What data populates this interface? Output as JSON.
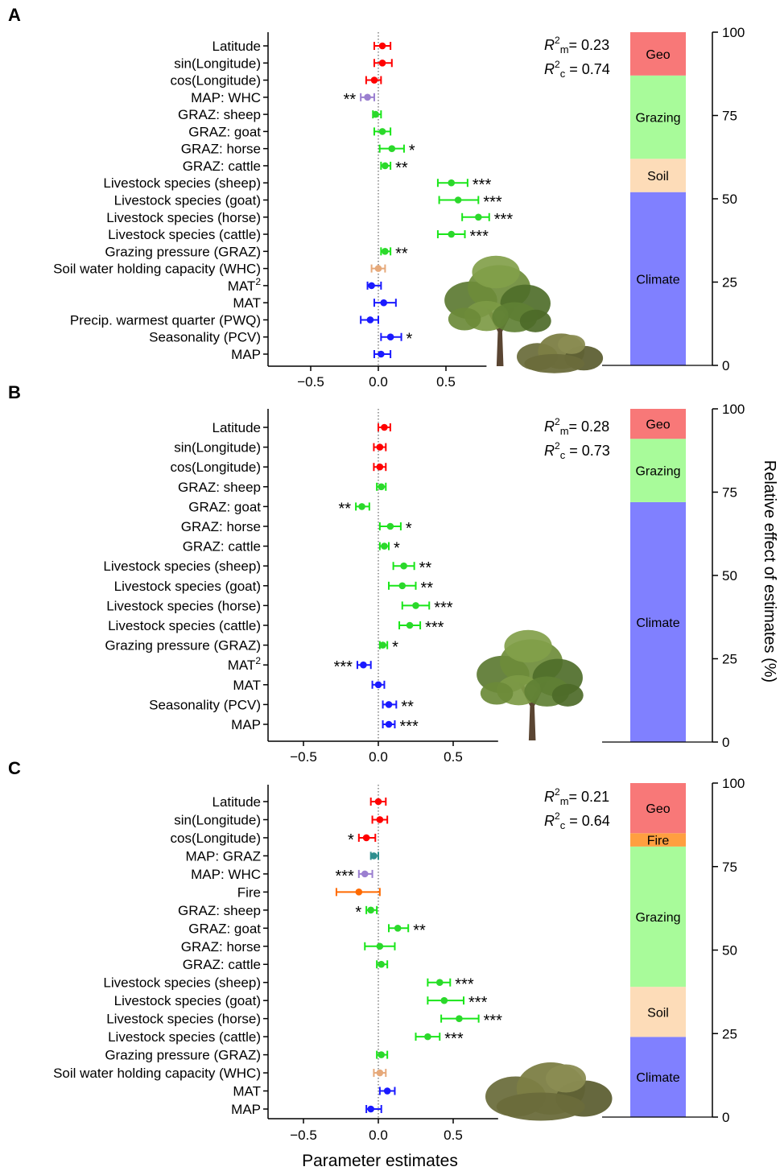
{
  "xlabel": "Parameter estimates",
  "right_axis_label": "Relative effect of estimates (%)",
  "colors": {
    "geo": "#ff0000",
    "grazing": "#19e619",
    "grazing_point": "#2bd82b",
    "soil": "#e6a97a",
    "climate": "#1a1aff",
    "fire": "#ff6a00",
    "bar_geo": "#f87878",
    "bar_grazing": "#a8fb9a",
    "bar_soil": "#fddcb8",
    "bar_climate": "#8080ff",
    "bar_fire": "#ff9f40"
  },
  "chart_data": [
    {
      "panel_label": "A",
      "type": "forest",
      "xlim": [
        -0.8,
        0.8
      ],
      "xticks": [
        -0.5,
        0.0,
        0.5
      ],
      "xtick_labels": [
        "−0.5",
        "0.0",
        "0.5"
      ],
      "r2m_text": "= 0.23",
      "r2c_text": "= 0.74",
      "picture": "tree-and-shrub",
      "rows": [
        {
          "label": "Latitude",
          "group": "geo",
          "est": 0.03,
          "lo": -0.03,
          "hi": 0.09,
          "sig": ""
        },
        {
          "label": "sin(Longitude)",
          "group": "geo",
          "est": 0.03,
          "lo": -0.03,
          "hi": 0.1,
          "sig": ""
        },
        {
          "label": "cos(Longitude)",
          "group": "geo",
          "est": -0.03,
          "lo": -0.09,
          "hi": 0.02,
          "sig": ""
        },
        {
          "label": "MAP: WHC",
          "group": "mixed",
          "est": -0.08,
          "lo": -0.13,
          "hi": -0.03,
          "sig": "**"
        },
        {
          "label": "GRAZ: sheep",
          "group": "grazing",
          "est": -0.02,
          "lo": -0.04,
          "hi": 0.02,
          "sig": ""
        },
        {
          "label": "GRAZ: goat",
          "group": "grazing",
          "est": 0.03,
          "lo": -0.03,
          "hi": 0.09,
          "sig": ""
        },
        {
          "label": "GRAZ: horse",
          "group": "grazing",
          "est": 0.1,
          "lo": 0.01,
          "hi": 0.19,
          "sig": "*"
        },
        {
          "label": "GRAZ: cattle",
          "group": "grazing",
          "est": 0.05,
          "lo": 0.02,
          "hi": 0.09,
          "sig": "**"
        },
        {
          "label": "Livestock species (sheep)",
          "group": "grazing",
          "est": 0.54,
          "lo": 0.44,
          "hi": 0.66,
          "sig": "***"
        },
        {
          "label": "Livestock species (goat)",
          "group": "grazing",
          "est": 0.59,
          "lo": 0.45,
          "hi": 0.74,
          "sig": "***"
        },
        {
          "label": "Livestock species (horse)",
          "group": "grazing",
          "est": 0.74,
          "lo": 0.62,
          "hi": 0.82,
          "sig": "***"
        },
        {
          "label": "Livestock species (cattle)",
          "group": "grazing",
          "est": 0.54,
          "lo": 0.44,
          "hi": 0.64,
          "sig": "***"
        },
        {
          "label": "Grazing pressure (GRAZ)",
          "group": "grazing",
          "est": 0.05,
          "lo": 0.02,
          "hi": 0.09,
          "sig": "**"
        },
        {
          "label": "Soil water holding capacity (WHC)",
          "group": "soil",
          "est": 0.0,
          "lo": -0.05,
          "hi": 0.05,
          "sig": ""
        },
        {
          "label": "MAT",
          "sup": "2",
          "group": "climate",
          "est": -0.05,
          "lo": -0.08,
          "hi": 0.02,
          "sig": ""
        },
        {
          "label": "MAT",
          "group": "climate",
          "est": 0.04,
          "lo": -0.03,
          "hi": 0.13,
          "sig": ""
        },
        {
          "label": "Precip. warmest quarter (PWQ)",
          "group": "climate",
          "est": -0.06,
          "lo": -0.13,
          "hi": 0.0,
          "sig": ""
        },
        {
          "label": "Seasonality (PCV)",
          "group": "climate",
          "est": 0.09,
          "lo": 0.02,
          "hi": 0.17,
          "sig": "*"
        },
        {
          "label": "MAP",
          "group": "climate",
          "est": 0.02,
          "lo": -0.03,
          "hi": 0.09,
          "sig": ""
        }
      ],
      "bar": [
        {
          "name": "Climate",
          "key": "climate",
          "value": 52
        },
        {
          "name": "Soil",
          "key": "soil",
          "value": 10
        },
        {
          "name": "Grazing",
          "key": "grazing",
          "value": 25
        },
        {
          "name": "Geo",
          "key": "geo",
          "value": 13
        }
      ],
      "bar_ylim": [
        0,
        100
      ],
      "bar_yticks": [
        0,
        25,
        50,
        75,
        100
      ]
    },
    {
      "panel_label": "B",
      "type": "forest",
      "xlim": [
        -0.8,
        0.8
      ],
      "xticks": [
        -0.5,
        0.0,
        0.5
      ],
      "xtick_labels": [
        "−0.5",
        "0.0",
        "0.5"
      ],
      "r2m_text": "= 0.28",
      "r2c_text": "= 0.73",
      "picture": "tree",
      "rows": [
        {
          "label": "Latitude",
          "group": "geo",
          "est": 0.04,
          "lo": 0.0,
          "hi": 0.08,
          "sig": ""
        },
        {
          "label": "sin(Longitude)",
          "group": "geo",
          "est": 0.01,
          "lo": -0.03,
          "hi": 0.05,
          "sig": ""
        },
        {
          "label": "cos(Longitude)",
          "group": "geo",
          "est": 0.01,
          "lo": -0.03,
          "hi": 0.05,
          "sig": ""
        },
        {
          "label": "GRAZ: sheep",
          "group": "grazing",
          "est": 0.02,
          "lo": -0.01,
          "hi": 0.05,
          "sig": ""
        },
        {
          "label": "GRAZ: goat",
          "group": "grazing",
          "est": -0.11,
          "lo": -0.15,
          "hi": -0.06,
          "sig": "**"
        },
        {
          "label": "GRAZ: horse",
          "group": "grazing",
          "est": 0.08,
          "lo": 0.01,
          "hi": 0.15,
          "sig": "*"
        },
        {
          "label": "GRAZ: cattle",
          "group": "grazing",
          "est": 0.04,
          "lo": 0.01,
          "hi": 0.07,
          "sig": "*"
        },
        {
          "label": "Livestock species (sheep)",
          "group": "grazing",
          "est": 0.17,
          "lo": 0.1,
          "hi": 0.24,
          "sig": "**"
        },
        {
          "label": "Livestock species (goat)",
          "group": "grazing",
          "est": 0.16,
          "lo": 0.07,
          "hi": 0.25,
          "sig": "**"
        },
        {
          "label": "Livestock species (horse)",
          "group": "grazing",
          "est": 0.25,
          "lo": 0.16,
          "hi": 0.34,
          "sig": "***"
        },
        {
          "label": "Livestock species (cattle)",
          "group": "grazing",
          "est": 0.21,
          "lo": 0.14,
          "hi": 0.28,
          "sig": "***"
        },
        {
          "label": "Grazing pressure (GRAZ)",
          "group": "grazing",
          "est": 0.03,
          "lo": 0.01,
          "hi": 0.06,
          "sig": "*"
        },
        {
          "label": "MAT",
          "sup": "2",
          "group": "climate",
          "est": -0.1,
          "lo": -0.14,
          "hi": -0.05,
          "sig": "***"
        },
        {
          "label": "MAT",
          "group": "climate",
          "est": 0.0,
          "lo": -0.04,
          "hi": 0.04,
          "sig": ""
        },
        {
          "label": "Seasonality (PCV)",
          "group": "climate",
          "est": 0.07,
          "lo": 0.03,
          "hi": 0.12,
          "sig": "**"
        },
        {
          "label": "MAP",
          "group": "climate",
          "est": 0.07,
          "lo": 0.03,
          "hi": 0.11,
          "sig": "***"
        }
      ],
      "bar": [
        {
          "name": "Climate",
          "key": "climate",
          "value": 72
        },
        {
          "name": "Grazing",
          "key": "grazing",
          "value": 19
        },
        {
          "name": "Geo",
          "key": "geo",
          "value": 9
        }
      ],
      "bar_ylim": [
        0,
        100
      ],
      "bar_yticks": [
        0,
        25,
        50,
        75,
        100
      ]
    },
    {
      "panel_label": "C",
      "type": "forest",
      "xlim": [
        -0.8,
        0.8
      ],
      "xticks": [
        -0.5,
        0.0,
        0.5
      ],
      "xtick_labels": [
        "−0.5",
        "0.0",
        "0.5"
      ],
      "r2m_text": "= 0.21",
      "r2c_text": "= 0.64",
      "picture": "shrub",
      "rows": [
        {
          "label": "Latitude",
          "group": "geo",
          "est": 0.0,
          "lo": -0.05,
          "hi": 0.05,
          "sig": ""
        },
        {
          "label": "sin(Longitude)",
          "group": "geo",
          "est": 0.01,
          "lo": -0.04,
          "hi": 0.06,
          "sig": ""
        },
        {
          "label": "cos(Longitude)",
          "group": "geo",
          "est": -0.08,
          "lo": -0.13,
          "hi": -0.02,
          "sig": "*"
        },
        {
          "label": "MAP: GRAZ",
          "group": "mixed2",
          "est": -0.03,
          "lo": -0.05,
          "hi": 0.0,
          "sig": ""
        },
        {
          "label": "MAP: WHC",
          "group": "mixed",
          "est": -0.09,
          "lo": -0.13,
          "hi": -0.04,
          "sig": "***"
        },
        {
          "label": "Fire",
          "group": "fire",
          "est": -0.13,
          "lo": -0.28,
          "hi": 0.01,
          "sig": ""
        },
        {
          "label": "GRAZ: sheep",
          "group": "grazing",
          "est": -0.05,
          "lo": -0.08,
          "hi": -0.01,
          "sig": "*"
        },
        {
          "label": "GRAZ: goat",
          "group": "grazing",
          "est": 0.13,
          "lo": 0.07,
          "hi": 0.2,
          "sig": "**"
        },
        {
          "label": "GRAZ: horse",
          "group": "grazing",
          "est": 0.01,
          "lo": -0.09,
          "hi": 0.11,
          "sig": ""
        },
        {
          "label": "GRAZ: cattle",
          "group": "grazing",
          "est": 0.02,
          "lo": -0.01,
          "hi": 0.06,
          "sig": ""
        },
        {
          "label": "Livestock species (sheep)",
          "group": "grazing",
          "est": 0.41,
          "lo": 0.33,
          "hi": 0.48,
          "sig": "***"
        },
        {
          "label": "Livestock species (goat)",
          "group": "grazing",
          "est": 0.44,
          "lo": 0.33,
          "hi": 0.57,
          "sig": "***"
        },
        {
          "label": "Livestock species (horse)",
          "group": "grazing",
          "est": 0.54,
          "lo": 0.42,
          "hi": 0.67,
          "sig": "***"
        },
        {
          "label": "Livestock species (cattle)",
          "group": "grazing",
          "est": 0.33,
          "lo": 0.25,
          "hi": 0.41,
          "sig": "***"
        },
        {
          "label": "Grazing pressure (GRAZ)",
          "group": "grazing",
          "est": 0.02,
          "lo": -0.01,
          "hi": 0.06,
          "sig": ""
        },
        {
          "label": "Soil water holding capacity (WHC)",
          "group": "soil",
          "est": 0.01,
          "lo": -0.03,
          "hi": 0.05,
          "sig": ""
        },
        {
          "label": "MAT",
          "group": "climate",
          "est": 0.06,
          "lo": 0.01,
          "hi": 0.11,
          "sig": ""
        },
        {
          "label": "MAP",
          "group": "climate",
          "est": -0.05,
          "lo": -0.08,
          "hi": 0.02,
          "sig": ""
        }
      ],
      "bar": [
        {
          "name": "Climate",
          "key": "climate",
          "value": 24
        },
        {
          "name": "Soil",
          "key": "soil",
          "value": 15
        },
        {
          "name": "Grazing",
          "key": "grazing",
          "value": 42
        },
        {
          "name": "Fire",
          "key": "fire",
          "value": 4
        },
        {
          "name": "Geo",
          "key": "geo",
          "value": 15
        }
      ],
      "bar_ylim": [
        0,
        100
      ],
      "bar_yticks": [
        0,
        25,
        50,
        75,
        100
      ]
    }
  ]
}
